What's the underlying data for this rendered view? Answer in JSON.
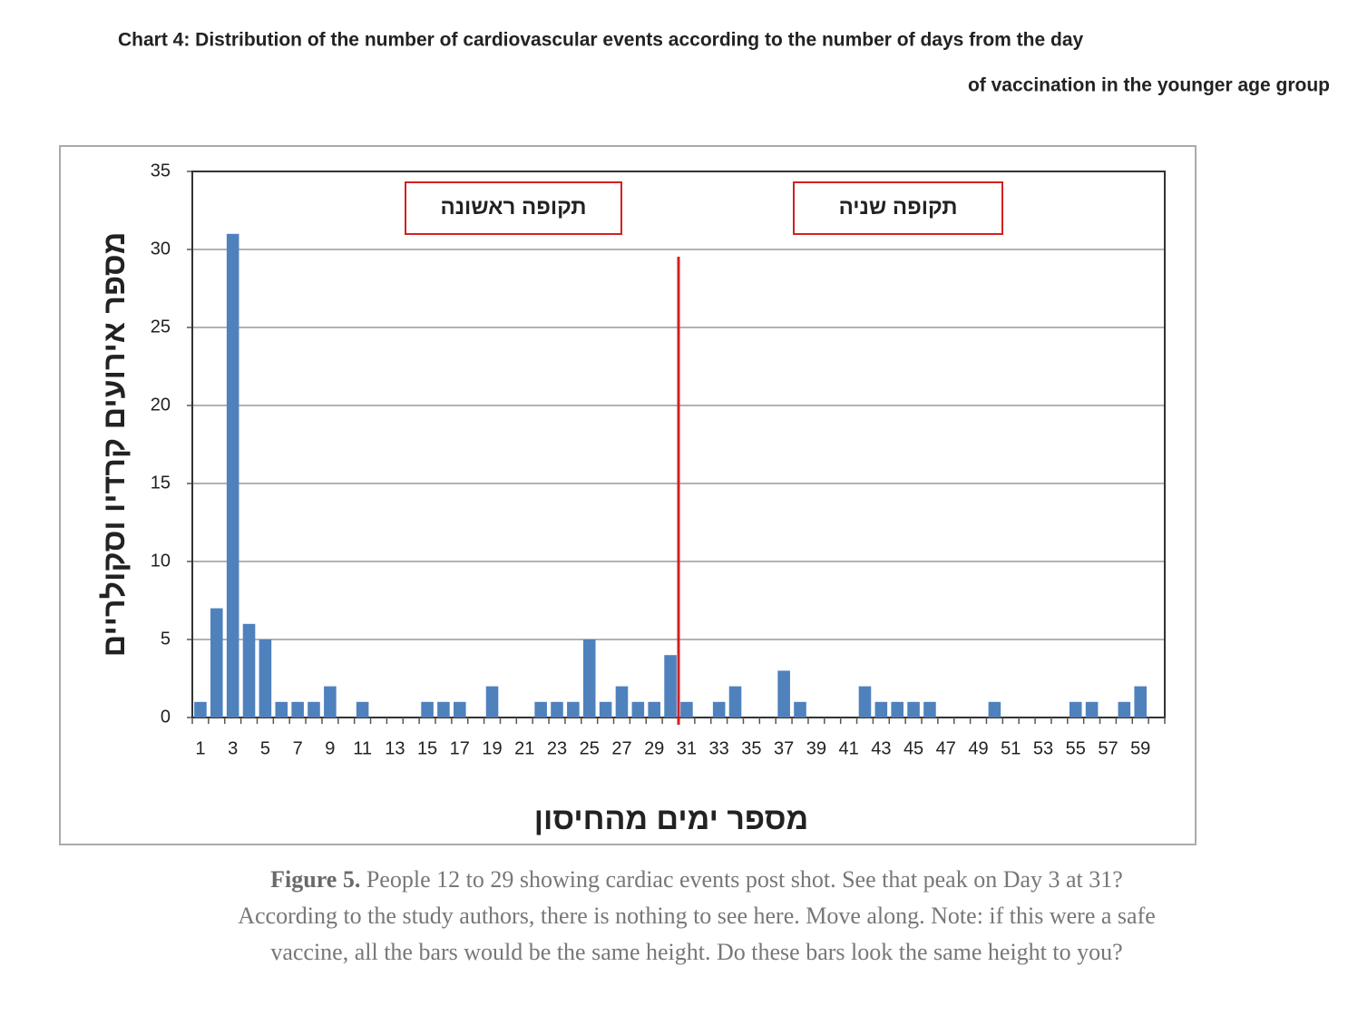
{
  "chart_data": {
    "type": "bar",
    "title": [
      "Chart 4: Distribution of the number of cardiovascular events according to the number of days from the day",
      "of vaccination in the younger age group"
    ],
    "y_label": "מספר אירועים קרדיו וסקולריים",
    "x_label": "מספר ימים מהחיסון",
    "annotations": [
      "תקופה ראשונה",
      "תקופה שניה"
    ],
    "categories": [
      "1",
      null,
      "3",
      null,
      "5",
      null,
      "7",
      null,
      "9",
      null,
      "11",
      null,
      "13",
      null,
      "15",
      null,
      "17",
      null,
      "19",
      null,
      "21",
      null,
      "23",
      null,
      "25",
      null,
      "27",
      null,
      "29",
      null,
      "31",
      null,
      "33",
      null,
      "35",
      null,
      "37",
      null,
      "39",
      null,
      "41",
      null,
      "43",
      null,
      "45",
      null,
      "47",
      null,
      "49",
      null,
      "51",
      null,
      "53",
      null,
      "55",
      null,
      "57",
      null,
      "59",
      null
    ],
    "values": [
      1,
      7,
      31,
      6,
      5,
      1,
      1,
      1,
      2,
      0,
      1,
      0,
      0,
      0,
      1,
      1,
      1,
      0,
      2,
      0,
      0,
      1,
      1,
      1,
      5,
      1,
      2,
      1,
      1,
      4,
      1,
      0,
      1,
      2,
      0,
      0,
      3,
      1,
      0,
      0,
      0,
      2,
      1,
      1,
      1,
      1,
      0,
      0,
      0,
      1,
      0,
      0,
      0,
      0,
      1,
      1,
      0,
      1,
      2,
      0
    ],
    "color": "#4f81bd",
    "ylim": [
      0,
      35
    ],
    "yticks": [
      0,
      5,
      10,
      15,
      20,
      25,
      30,
      35
    ],
    "grid": true,
    "vline": {
      "x": 30.5,
      "color": "#d42020"
    }
  },
  "caption": {
    "label": "Figure 5.",
    "text": "People 12 to 29 showing cardiac events post shot. See that peak on Day 3 at 31? According to the study authors, there is nothing to see here. Move along. Note: if this were a safe vaccine, all the bars would be the same height. Do these bars look the same height to you?"
  }
}
